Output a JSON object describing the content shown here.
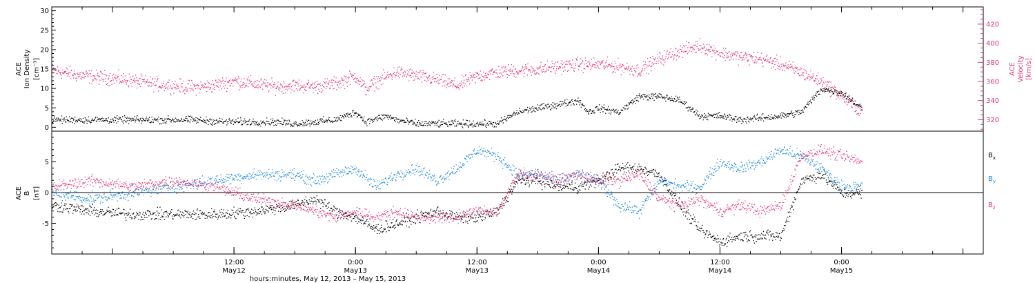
{
  "chart_data": [
    {
      "type": "scatter",
      "left_axis": {
        "label_lines": [
          "ACE",
          "Ion Density"
        ],
        "unit": "[cm⁻³]",
        "range": [
          -1,
          31
        ],
        "ticks": [
          "0",
          "5",
          "10",
          "15",
          "20",
          "25",
          "30"
        ],
        "color": "#000000"
      },
      "right_axis": {
        "label_lines": [
          "ACE",
          "Velocity"
        ],
        "unit": "[km/s]",
        "range": [
          308,
          438
        ],
        "ticks": [
          "320",
          "340",
          "360",
          "380",
          "400",
          "420"
        ],
        "color": "#e8306a"
      },
      "density_series": {
        "color": "#000000",
        "x_hours": [
          0,
          5,
          10,
          14,
          17,
          20,
          22,
          24,
          26,
          28,
          30,
          31,
          33,
          34,
          36,
          40,
          44,
          46,
          48,
          50,
          52,
          53,
          54,
          56,
          58,
          60,
          62,
          64,
          66,
          67,
          68,
          70,
          72,
          74,
          76,
          78,
          80
        ],
        "values": [
          2,
          2,
          2,
          2,
          1.5,
          1.5,
          1.5,
          1,
          1.5,
          2,
          4,
          1.5,
          3,
          2,
          1,
          1,
          1,
          4,
          5,
          6,
          7,
          4,
          5,
          4,
          8,
          8,
          7,
          3,
          3,
          2.5,
          2,
          2.5,
          3,
          4,
          10,
          9,
          5
        ]
      },
      "velocity_series": {
        "color": "#e8306a",
        "x_hours": [
          0,
          2,
          4,
          6,
          8,
          10,
          12,
          14,
          16,
          18,
          20,
          22,
          24,
          26,
          28,
          30,
          31,
          32,
          34,
          36,
          38,
          40,
          42,
          44,
          46,
          48,
          50,
          52,
          54,
          56,
          58,
          60,
          62,
          64,
          66,
          68,
          70,
          72,
          74,
          76,
          78,
          80
        ],
        "values": [
          372,
          368,
          365,
          364,
          361,
          358,
          356,
          354,
          356,
          361,
          358,
          355,
          356,
          355,
          358,
          366,
          352,
          360,
          370,
          366,
          362,
          356,
          366,
          370,
          372,
          373,
          376,
          378,
          378,
          376,
          372,
          384,
          392,
          398,
          390,
          386,
          384,
          378,
          370,
          360,
          345,
          328
        ]
      }
    },
    {
      "type": "scatter",
      "left_axis": {
        "label_lines": [
          "ACE",
          "B"
        ],
        "unit": "[nT]",
        "range": [
          -10,
          10
        ],
        "ticks": [
          "-5",
          "0",
          "5"
        ],
        "color": "#000000"
      },
      "zero_line": 0,
      "series": [
        {
          "name": "B",
          "subscript": "x",
          "color": "#000000",
          "x_hours": [
            0,
            4,
            8,
            12,
            16,
            20,
            24,
            26,
            28,
            30,
            32,
            34,
            36,
            38,
            40,
            42,
            44,
            46,
            48,
            50,
            52,
            54,
            56,
            58,
            60,
            62,
            64,
            66,
            68,
            70,
            72,
            74,
            76,
            78,
            80
          ],
          "values": [
            -2,
            -3,
            -3.5,
            -3.5,
            -3.5,
            -3,
            -2,
            -1,
            -3,
            -4,
            -6,
            -5,
            -4,
            -3,
            -4,
            -4,
            -3,
            2,
            2,
            1,
            1,
            2,
            4,
            4,
            3,
            -2,
            -6,
            -8,
            -7,
            -7,
            -7,
            2,
            3,
            0,
            0
          ]
        },
        {
          "name": "B",
          "subscript": "y",
          "color": "#1a88e0",
          "x_hours": [
            0,
            4,
            8,
            12,
            16,
            20,
            24,
            26,
            28,
            30,
            32,
            34,
            36,
            38,
            40,
            42,
            44,
            46,
            48,
            50,
            52,
            54,
            56,
            58,
            60,
            62,
            64,
            66,
            68,
            70,
            72,
            74,
            76,
            78,
            80
          ],
          "values": [
            0,
            -1,
            0,
            1,
            2,
            3,
            3,
            2,
            3,
            4,
            1,
            3,
            4,
            2,
            4,
            7,
            6,
            3,
            3,
            2,
            3,
            2,
            -2,
            -3,
            2,
            1,
            1,
            5,
            4,
            5,
            7,
            6,
            4,
            1,
            1
          ]
        },
        {
          "name": "B",
          "subscript": "z",
          "color": "#e8306a",
          "x_hours": [
            0,
            4,
            8,
            12,
            16,
            20,
            24,
            26,
            28,
            30,
            32,
            34,
            36,
            38,
            40,
            42,
            44,
            46,
            48,
            50,
            52,
            54,
            56,
            58,
            60,
            62,
            64,
            66,
            68,
            70,
            72,
            74,
            76,
            78,
            80
          ],
          "values": [
            1,
            2,
            1,
            2,
            1,
            -1,
            -2,
            -3,
            -4,
            -3,
            -4,
            -3,
            -4,
            -4,
            -4,
            -3,
            -3,
            3,
            3,
            2,
            3,
            2,
            2,
            3,
            -1,
            -2,
            -1,
            -3,
            -2,
            -3,
            -2,
            6,
            7,
            6,
            5
          ]
        }
      ]
    }
  ],
  "x_axis": {
    "start_hour": 0,
    "end_hour": 92,
    "ticks": [
      {
        "hour": 18,
        "time": "12:00",
        "date": "May12"
      },
      {
        "hour": 30,
        "time": "0:00",
        "date": "May13"
      },
      {
        "hour": 42,
        "time": "12:00",
        "date": "May13"
      },
      {
        "hour": 54,
        "time": "0:00",
        "date": "May14"
      },
      {
        "hour": 66,
        "time": "12:00",
        "date": "May14"
      },
      {
        "hour": 78,
        "time": "0:00",
        "date": "May15"
      }
    ],
    "title": "hours:minutes, May 12, 2013 – May 15, 2013"
  }
}
